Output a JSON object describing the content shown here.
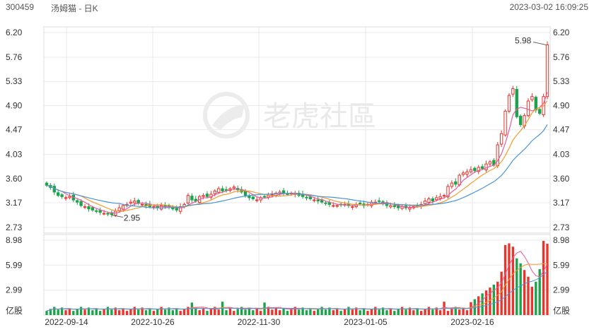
{
  "header": {
    "code": "300459",
    "name": "汤姆猫 - 日K",
    "datetime": "2023-03-02 16:09:25"
  },
  "watermark": {
    "text": "老虎社區"
  },
  "colors": {
    "up": "#e8342b",
    "down": "#1aa34a",
    "ma5": "#e85a9a",
    "ma10": "#f39a2d",
    "ma20": "#4a95d8",
    "grid": "#e9e9e9"
  },
  "chart_data": {
    "type": "candlestick",
    "price_ticks": [
      "6.20",
      "5.76",
      "5.33",
      "4.90",
      "4.47",
      "4.03",
      "3.60",
      "3.17",
      "2.73"
    ],
    "price_range": [
      2.73,
      6.2
    ],
    "volume_ticks": [
      "8.98",
      "5.99",
      "2.99"
    ],
    "volume_unit": "亿股",
    "volume_range": [
      0,
      8.98
    ],
    "x_labels": [
      "2022-09-14",
      "2022-10-26",
      "2022-11-30",
      "2023-01-05",
      "2023-02-16"
    ],
    "annotations": [
      {
        "text": "2.95",
        "value": 2.95
      },
      {
        "text": "5.98",
        "value": 5.98
      }
    ],
    "grid": true
  }
}
